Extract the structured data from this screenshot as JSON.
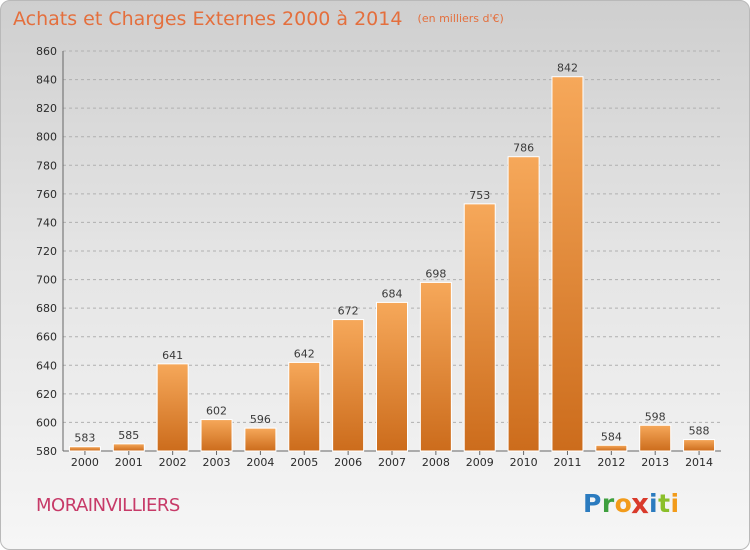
{
  "title": "Achats et Charges Externes 2000 à 2014",
  "unit": "(en milliers d'€)",
  "city": "MORAINVILLIERS",
  "logo": {
    "text": "Proxiti",
    "letters": [
      {
        "ch": "P",
        "color": "#2b7bbf"
      },
      {
        "ch": "r",
        "color": "#3e9f3e"
      },
      {
        "ch": "o",
        "color": "#f29b1a"
      },
      {
        "ch": "x",
        "color": "#d93a2b"
      },
      {
        "ch": "i",
        "color": "#2b7bbf"
      },
      {
        "ch": "t",
        "color": "#8bbf2b"
      },
      {
        "ch": "i",
        "color": "#f29b1a"
      }
    ]
  },
  "colors": {
    "bar_light": "#f6a85a",
    "bar_dark": "#cc6c1c",
    "title": "#e46f3d",
    "city": "#c73a68",
    "grid": "#b0b0b0"
  },
  "chart_data": {
    "type": "bar",
    "title": "Achats et Charges Externes 2000 à 2014",
    "subtitle": "(en milliers d'€)",
    "categories": [
      "2000",
      "2001",
      "2002",
      "2003",
      "2004",
      "2005",
      "2006",
      "2007",
      "2008",
      "2009",
      "2010",
      "2011",
      "2012",
      "2013",
      "2014"
    ],
    "values": [
      583,
      585,
      641,
      602,
      596,
      642,
      672,
      684,
      698,
      753,
      786,
      842,
      584,
      598,
      588
    ],
    "xlabel": "",
    "ylabel": "",
    "ylim": [
      580,
      860
    ],
    "yticks": [
      580,
      600,
      620,
      640,
      660,
      680,
      700,
      720,
      740,
      760,
      780,
      800,
      820,
      840,
      860
    ],
    "grid": "horizontal dashed",
    "data_labels": true
  }
}
